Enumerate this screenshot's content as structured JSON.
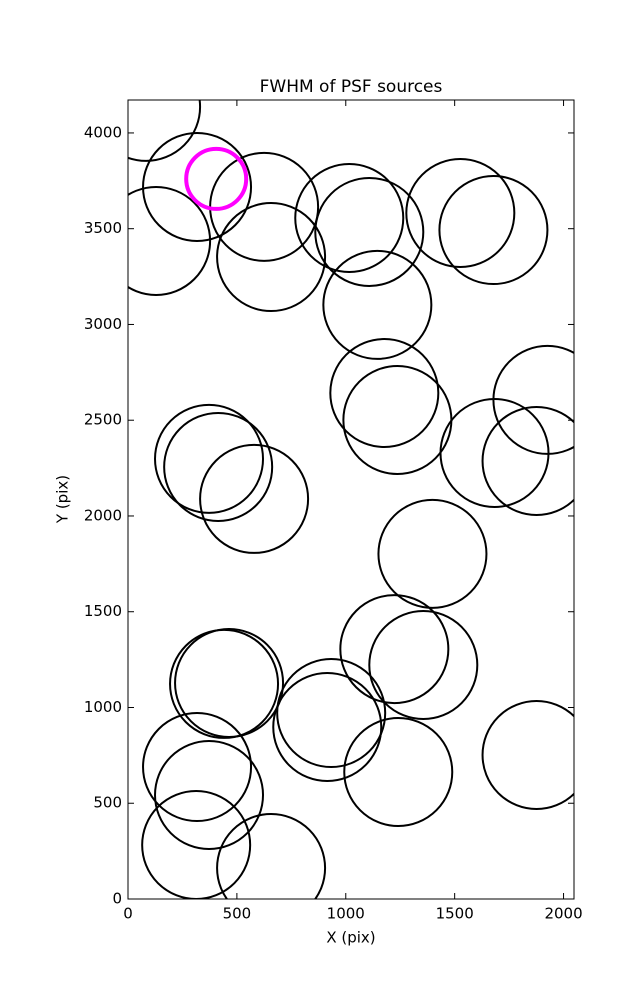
{
  "chart_data": {
    "type": "scatter",
    "title": "FWHM of PSF sources",
    "x_label": "X (pix)",
    "y_label": "Y (pix)",
    "xlim": [
      0,
      2048
    ],
    "ylim": [
      0,
      4172
    ],
    "xticks": [
      0,
      500,
      1000,
      1500,
      2000
    ],
    "yticks": [
      0,
      500,
      1000,
      1500,
      2000,
      2500,
      3000,
      3500,
      4000
    ],
    "series": [
      {
        "color": "#000000",
        "x": [
          83,
          317,
          625,
          129,
          657,
          1016,
          1108,
          1526,
          1678,
          1145,
          1177,
          1237,
          1926,
          1683,
          1876,
          372,
          414,
          579,
          1398,
          1223,
          1356,
          441,
          464,
          933,
          915,
          1876,
          317,
          1241,
          372,
          313,
          657
        ],
        "y": [
          4136,
          3718,
          3614,
          3436,
          3352,
          3556,
          3483,
          3582,
          3493,
          3102,
          2642,
          2501,
          2606,
          2329,
          2287,
          2298,
          2256,
          2089,
          1802,
          1305,
          1222,
          1123,
          1128,
          971,
          898,
          752,
          689,
          663,
          543,
          282,
          162
        ],
        "sizes": [
          54,
          54,
          54,
          54,
          54,
          54,
          54,
          54,
          54,
          54,
          54,
          54,
          54,
          54,
          54,
          54,
          54,
          54,
          54,
          54,
          54,
          54,
          54,
          54,
          54,
          54,
          54,
          54,
          54,
          54,
          54
        ]
      },
      {
        "color": "#ff00ff",
        "x": [
          405
        ],
        "y": [
          3760
        ],
        "sizes": [
          30
        ]
      }
    ]
  }
}
